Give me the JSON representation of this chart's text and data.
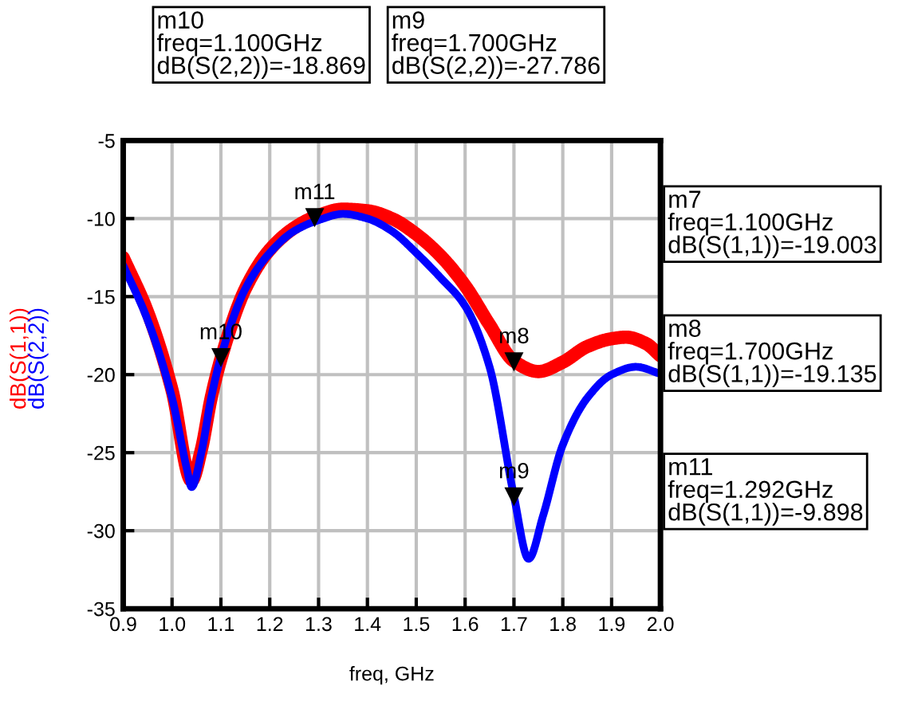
{
  "chart_data": {
    "type": "line",
    "xlabel": "freq, GHz",
    "xlim": [
      0.9,
      2.0
    ],
    "xticks": [
      {
        "value": 0.9,
        "label": "0.9"
      },
      {
        "value": 1.0,
        "label": "1.0"
      },
      {
        "value": 1.1,
        "label": "1.1"
      },
      {
        "value": 1.2,
        "label": "1.2"
      },
      {
        "value": 1.3,
        "label": "1.3"
      },
      {
        "value": 1.4,
        "label": "1.4"
      },
      {
        "value": 1.5,
        "label": "1.5"
      },
      {
        "value": 1.6,
        "label": "1.6"
      },
      {
        "value": 1.7,
        "label": "1.7"
      },
      {
        "value": 1.8,
        "label": "1.8"
      },
      {
        "value": 1.9,
        "label": "1.9"
      },
      {
        "value": 2.0,
        "label": "2.0"
      }
    ],
    "ylim": [
      -35,
      -5
    ],
    "yticks": [
      -35,
      -30,
      -25,
      -20,
      -15,
      -10,
      -5
    ],
    "grid": true,
    "legend": false,
    "marker": "none",
    "line_style": "solid",
    "series": [
      {
        "name": "dB(S(1,1))",
        "color": "#ff0000",
        "x": [
          0.9,
          0.95,
          1.0,
          1.04,
          1.06,
          1.08,
          1.1,
          1.15,
          1.2,
          1.25,
          1.292,
          1.35,
          1.4,
          1.45,
          1.5,
          1.55,
          1.6,
          1.65,
          1.7,
          1.75,
          1.8,
          1.85,
          1.9,
          1.93,
          1.97,
          2.0
        ],
        "values": [
          -12.5,
          -16.0,
          -21.0,
          -26.8,
          -24.8,
          -21.5,
          -19.003,
          -14.5,
          -12.0,
          -10.6,
          -9.898,
          -9.4,
          -9.5,
          -10.0,
          -11.0,
          -12.4,
          -14.3,
          -16.8,
          -19.135,
          -19.8,
          -19.2,
          -18.2,
          -17.7,
          -17.6,
          -18.0,
          -18.8
        ]
      },
      {
        "name": "dB(S(2,2))",
        "color": "#0000ff",
        "x": [
          0.9,
          0.95,
          1.0,
          1.03,
          1.04,
          1.06,
          1.08,
          1.1,
          1.15,
          1.2,
          1.25,
          1.3,
          1.35,
          1.4,
          1.45,
          1.5,
          1.55,
          1.6,
          1.65,
          1.7,
          1.73,
          1.76,
          1.8,
          1.85,
          1.9,
          1.95,
          2.0
        ],
        "values": [
          -13.0,
          -16.5,
          -21.5,
          -26.0,
          -27.2,
          -25.0,
          -21.5,
          -18.869,
          -14.5,
          -12.2,
          -10.8,
          -10.1,
          -9.7,
          -10.0,
          -10.8,
          -12.2,
          -13.8,
          -15.6,
          -19.5,
          -27.786,
          -31.8,
          -29.0,
          -24.5,
          -21.5,
          -20.0,
          -19.5,
          -19.95
        ]
      }
    ],
    "annotations": [
      {
        "text": "m11",
        "x": 1.292,
        "y": -9.898
      },
      {
        "text": "m10",
        "x": 1.1,
        "y": -18.869
      },
      {
        "text": "m8",
        "x": 1.7,
        "y": -19.135
      },
      {
        "text": "m9",
        "x": 1.7,
        "y": -27.786
      },
      "m10\nfreq=1.100GHz\ndB(S(2,2))=-18.869",
      "m9\nfreq=1.700GHz\ndB(S(2,2))=-27.786",
      "m7\nfreq=1.100GHz\ndB(S(1,1))=-19.003",
      "m8\nfreq=1.700GHz\ndB(S(1,1))=-19.135",
      "m11\nfreq=1.292GHz\ndB(S(1,1))=-9.898"
    ]
  }
}
